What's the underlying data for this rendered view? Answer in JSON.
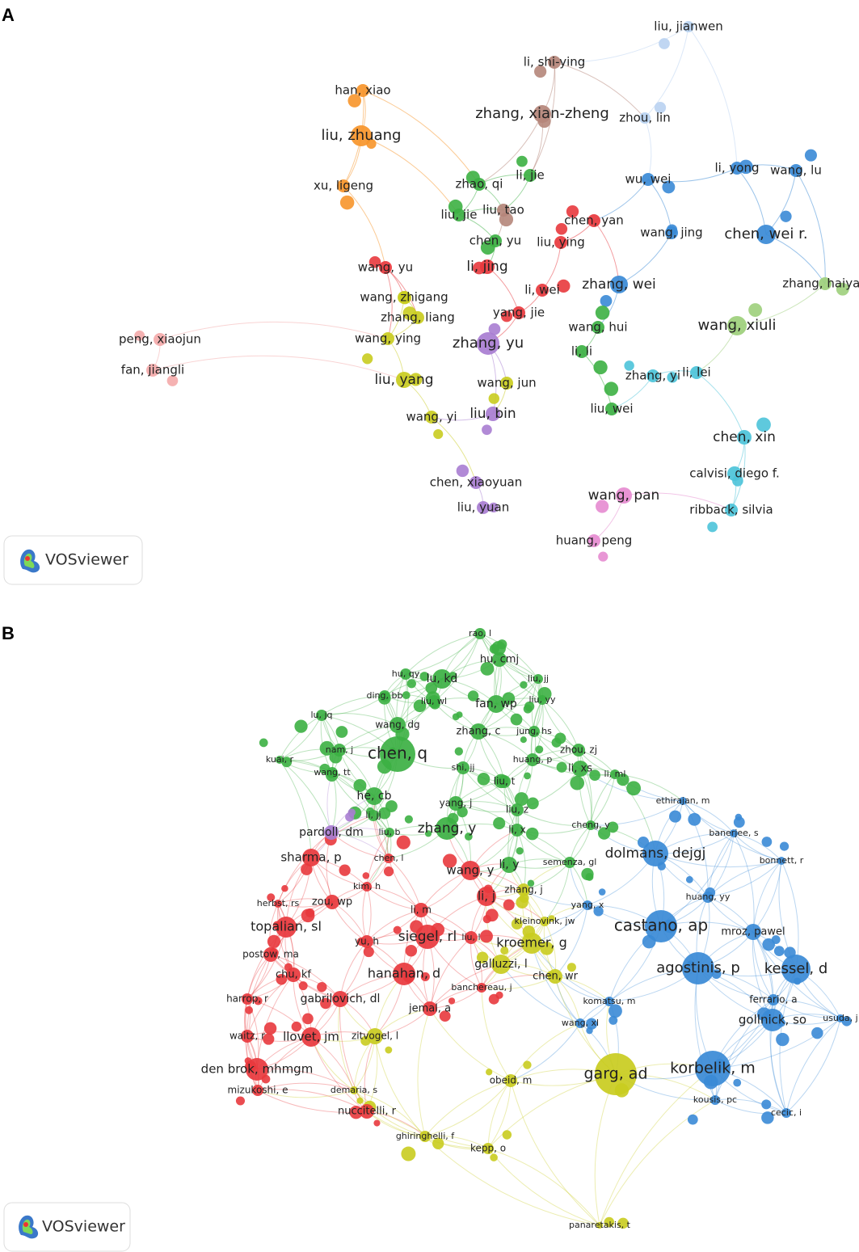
{
  "panels": [
    {
      "letter": "A",
      "logo": "VOSviewer",
      "nodes": [
        "liu, jianwen",
        "li, shi-ying",
        "han, xiao",
        "zhang, xian-zheng",
        "zhou, lin",
        "liu, zhuang",
        "li, yong",
        "wang, lu",
        "wu, wei",
        "xu, ligeng",
        "zhao, qi",
        "li, jie",
        "liu, jie",
        "liu, tao",
        "chen, yan",
        "wang, jing",
        "chen, wei r.",
        "chen, yu",
        "liu, ying",
        "wang, yu",
        "li, jing",
        "zhang, wei",
        "zhang, haiyan",
        "wang, zhigang",
        "li, wei",
        "yang, jie",
        "zhang, liang",
        "wang, xiuli",
        "peng, xiaojun",
        "wang, ying",
        "zhang, yu",
        "wang, hui",
        "li, li",
        "fan, jiangli",
        "zhang, yi",
        "li, lei",
        "liu, yang",
        "wang, jun",
        "liu, bin",
        "liu, wei",
        "wang, yi",
        "chen, xin",
        "calvisi, diego f.",
        "chen, xiaoyuan",
        "wang, pan",
        "liu, yuan",
        "ribback, silvia",
        "huang, peng"
      ]
    },
    {
      "letter": "B",
      "logo": "VOSviewer",
      "nodes": [
        "rao, l",
        "hu, cmj",
        "hu, qy",
        "lu, kd",
        "liu, jj",
        "ding, bb",
        "liu, wl",
        "fan, wp",
        "liu, yy",
        "lu, jq",
        "wang, dg",
        "zhang, c",
        "jung, hs",
        "nam, j",
        "chen, q",
        "zhou, zj",
        "kuai, r",
        "huang, p",
        "shi, jj",
        "li, xs",
        "wang, tt",
        "li, ml",
        "liu, t",
        "ethirajan, m",
        "he, cb",
        "yang, j",
        "li, jj",
        "liu, z",
        "pardoll, dm",
        "liu, b",
        "zhang, y",
        "li, x",
        "cheng, y",
        "banerjee, s",
        "dolmans, dejgj",
        "sharma, p",
        "chen, l",
        "semenza, gl",
        "li, y",
        "wang, y",
        "bonnett, r",
        "kim, h",
        "zhang, j",
        "li, j",
        "yang, x",
        "huang, yy",
        "herbst, rs",
        "zou, wp",
        "li, m",
        "kleinovink, jw",
        "topalian, sl",
        "castano, ap",
        "mroz, pawel",
        "siegel, rl",
        "liu, l",
        "kroemer, g",
        "postow, ma",
        "yu, h",
        "chu, kf",
        "hanahan, d",
        "galluzzi, l",
        "agostinis, p",
        "kessel, d",
        "chen, wr",
        "gabrilovich, dl",
        "banchereau, j",
        "komatsu, m",
        "ferrario, a",
        "harrop, r",
        "jemal, a",
        "wang, xl",
        "gollnick, so",
        "usuda, j",
        "waitz, r",
        "llovet, jm",
        "zitvogel, l",
        "den brok, mhmgm",
        "garg, ad",
        "korbelik, m",
        "obeid, m",
        "mizukoshi, e",
        "demaria, s",
        "kousis, pc",
        "nuccitelli, r",
        "cecic, i",
        "ghiringhelli, f",
        "kepp, o",
        "panaretakis, t"
      ]
    }
  ]
}
